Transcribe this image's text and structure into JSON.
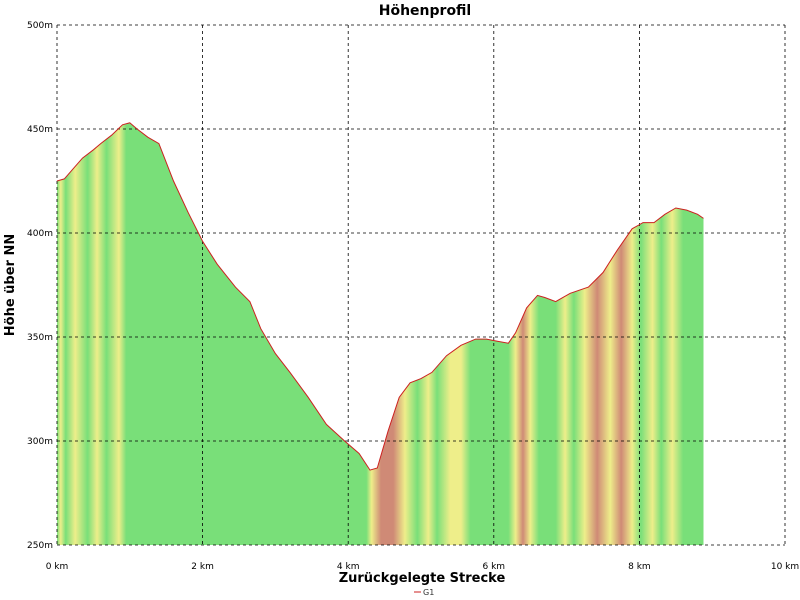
{
  "chart_data": {
    "type": "area",
    "title": "Höhenprofil",
    "xlabel": "Zurückgelegte Strecke",
    "ylabel": "Höhe über NN",
    "xlim": [
      0,
      10
    ],
    "ylim": [
      250,
      500
    ],
    "x_ticks": [
      0,
      2,
      4,
      6,
      8,
      10
    ],
    "x_tick_labels": [
      "0 km",
      "2 km",
      "4 km",
      "6 km",
      "8 km",
      "10 km"
    ],
    "y_ticks": [
      250,
      300,
      350,
      400,
      450,
      500
    ],
    "y_tick_labels": [
      "250m",
      "300m",
      "350m",
      "400m",
      "450m",
      "500m"
    ],
    "grid": true,
    "legend_position": "bottom-center",
    "line_color": "#cc2020",
    "gradient_colors": {
      "flat": "#79df79",
      "moderate": "#eeee8a",
      "steep": "#cf8a76"
    },
    "series": [
      {
        "name": "G1",
        "x": [
          0,
          0.1,
          0.2,
          0.35,
          0.5,
          0.6,
          0.75,
          0.9,
          1.0,
          1.1,
          1.25,
          1.4,
          1.6,
          1.8,
          2.0,
          2.2,
          2.45,
          2.65,
          2.8,
          3.0,
          3.2,
          3.45,
          3.7,
          3.95,
          4.15,
          4.3,
          4.4,
          4.55,
          4.7,
          4.85,
          5.0,
          5.15,
          5.35,
          5.55,
          5.75,
          5.9,
          6.05,
          6.2,
          6.3,
          6.45,
          6.6,
          6.7,
          6.85,
          7.05,
          7.3,
          7.5,
          7.7,
          7.9,
          8.05,
          8.2,
          8.35,
          8.5,
          8.65,
          8.8,
          8.88
        ],
        "y": [
          425,
          426,
          430,
          436,
          440,
          443,
          447,
          452,
          453,
          450,
          446,
          443,
          425,
          410,
          396,
          385,
          374,
          367,
          354,
          342,
          333,
          321,
          308,
          300,
          294,
          286,
          287,
          305,
          321,
          328,
          330,
          333,
          341,
          346,
          349,
          349,
          348,
          347,
          352,
          364,
          370,
          369,
          367,
          371,
          374,
          381,
          392,
          402,
          405,
          405,
          409,
          412,
          411,
          409,
          407
        ]
      }
    ],
    "gradient_class_by_km": [
      [
        0.0,
        0.3,
        "moderate"
      ],
      [
        0.3,
        0.8,
        "moderate"
      ],
      [
        0.8,
        0.95,
        "moderate"
      ],
      [
        0.95,
        4.3,
        "flat"
      ],
      [
        4.3,
        4.5,
        "moderate"
      ],
      [
        4.5,
        4.8,
        "steep"
      ],
      [
        4.8,
        5.0,
        "moderate"
      ],
      [
        5.0,
        5.6,
        "moderate"
      ],
      [
        5.6,
        6.25,
        "flat"
      ],
      [
        6.25,
        6.45,
        "steep"
      ],
      [
        6.45,
        6.7,
        "moderate"
      ],
      [
        6.7,
        7.0,
        "flat"
      ],
      [
        7.0,
        7.4,
        "moderate"
      ],
      [
        7.4,
        7.9,
        "steep"
      ],
      [
        7.9,
        8.1,
        "moderate"
      ],
      [
        8.1,
        8.88,
        "moderate"
      ]
    ]
  }
}
